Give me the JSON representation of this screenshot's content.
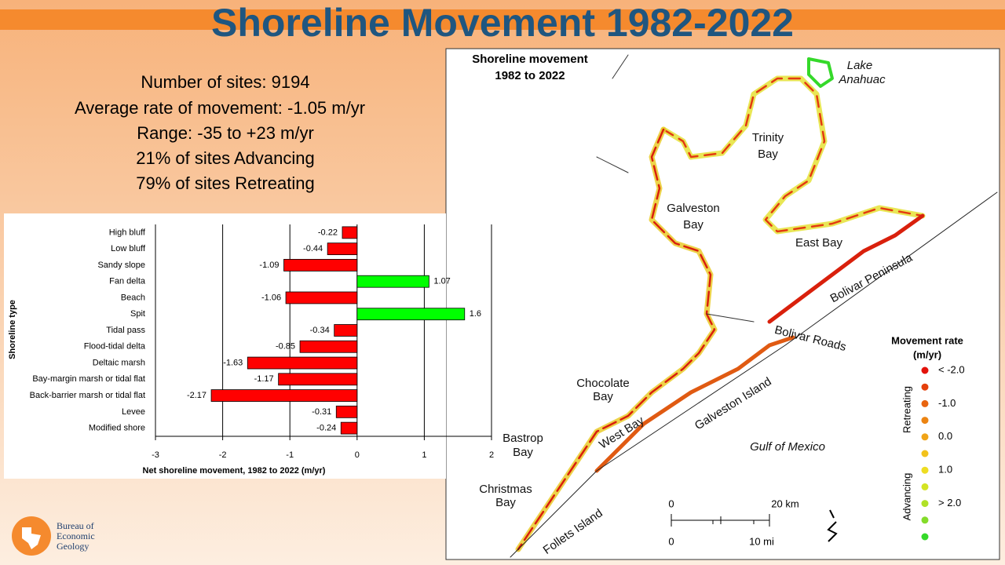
{
  "slide": {
    "title": "Shoreline Movement 1982-2022",
    "stats": [
      "Number of sites: 9194",
      "Average rate of movement: -1.05 m/yr",
      "Range: -35 to +23 m/yr",
      "21% of sites Advancing",
      "79% of sites Retreating"
    ],
    "logo": [
      "Bureau of",
      "Economic",
      "Geology"
    ]
  },
  "chart_data": {
    "type": "hbar",
    "categories": [
      "High bluff",
      "Low bluff",
      "Sandy slope",
      "Fan delta",
      "Beach",
      "Spit",
      "Tidal pass",
      "Flood-tidal delta",
      "Deltaic marsh",
      "Bay-margin marsh or tidal flat",
      "Back-barrier marsh or tidal flat",
      "Levee",
      "Modified shore"
    ],
    "values": [
      -0.22,
      -0.44,
      -1.09,
      1.07,
      -1.06,
      1.6,
      -0.34,
      -0.85,
      -1.63,
      -1.17,
      -2.17,
      -0.31,
      -0.24
    ],
    "negative_color": "#ff0000",
    "positive_color": "#00ff00",
    "xlim": [
      -3,
      2
    ],
    "xticks": [
      -3,
      -2,
      -1,
      0,
      1,
      2
    ],
    "grid": true,
    "x_label": "Net shoreline movement, 1982 to 2022 (m/yr)",
    "y_label": "Shoreline type"
  },
  "map": {
    "heading": [
      "Shoreline movement",
      "1982 to 2022"
    ],
    "labels": [
      "Lake",
      "Anahuac",
      "Trinity",
      "Bay",
      "Galveston",
      "Bay",
      "East Bay",
      "Bolivar Peninsula",
      "Bolivar Roads",
      "Chocolate",
      "Bay",
      "West Bay",
      "Galveston Island",
      "Gulf of Mexico",
      "Bastrop",
      "Bay",
      "Christmas",
      "Bay",
      "Follets Island"
    ],
    "legend": {
      "title": [
        "Movement rate",
        "(m/yr)"
      ],
      "retreating": "Retreating",
      "advancing": "Advancing",
      "dot_colors": [
        "#e3120b",
        "#e5400c",
        "#e8640f",
        "#ec8412",
        "#f0a417",
        "#f2c21c",
        "#eedd22",
        "#d4e424",
        "#b0e127",
        "#84dc2a",
        "#35d92a"
      ],
      "labels": [
        "< -2.0",
        "-1.0",
        "0.0",
        "1.0",
        "> 2.0"
      ]
    },
    "scale": {
      "km": [
        "0",
        "20 km"
      ],
      "mi": [
        "0",
        "10 mi"
      ]
    }
  }
}
